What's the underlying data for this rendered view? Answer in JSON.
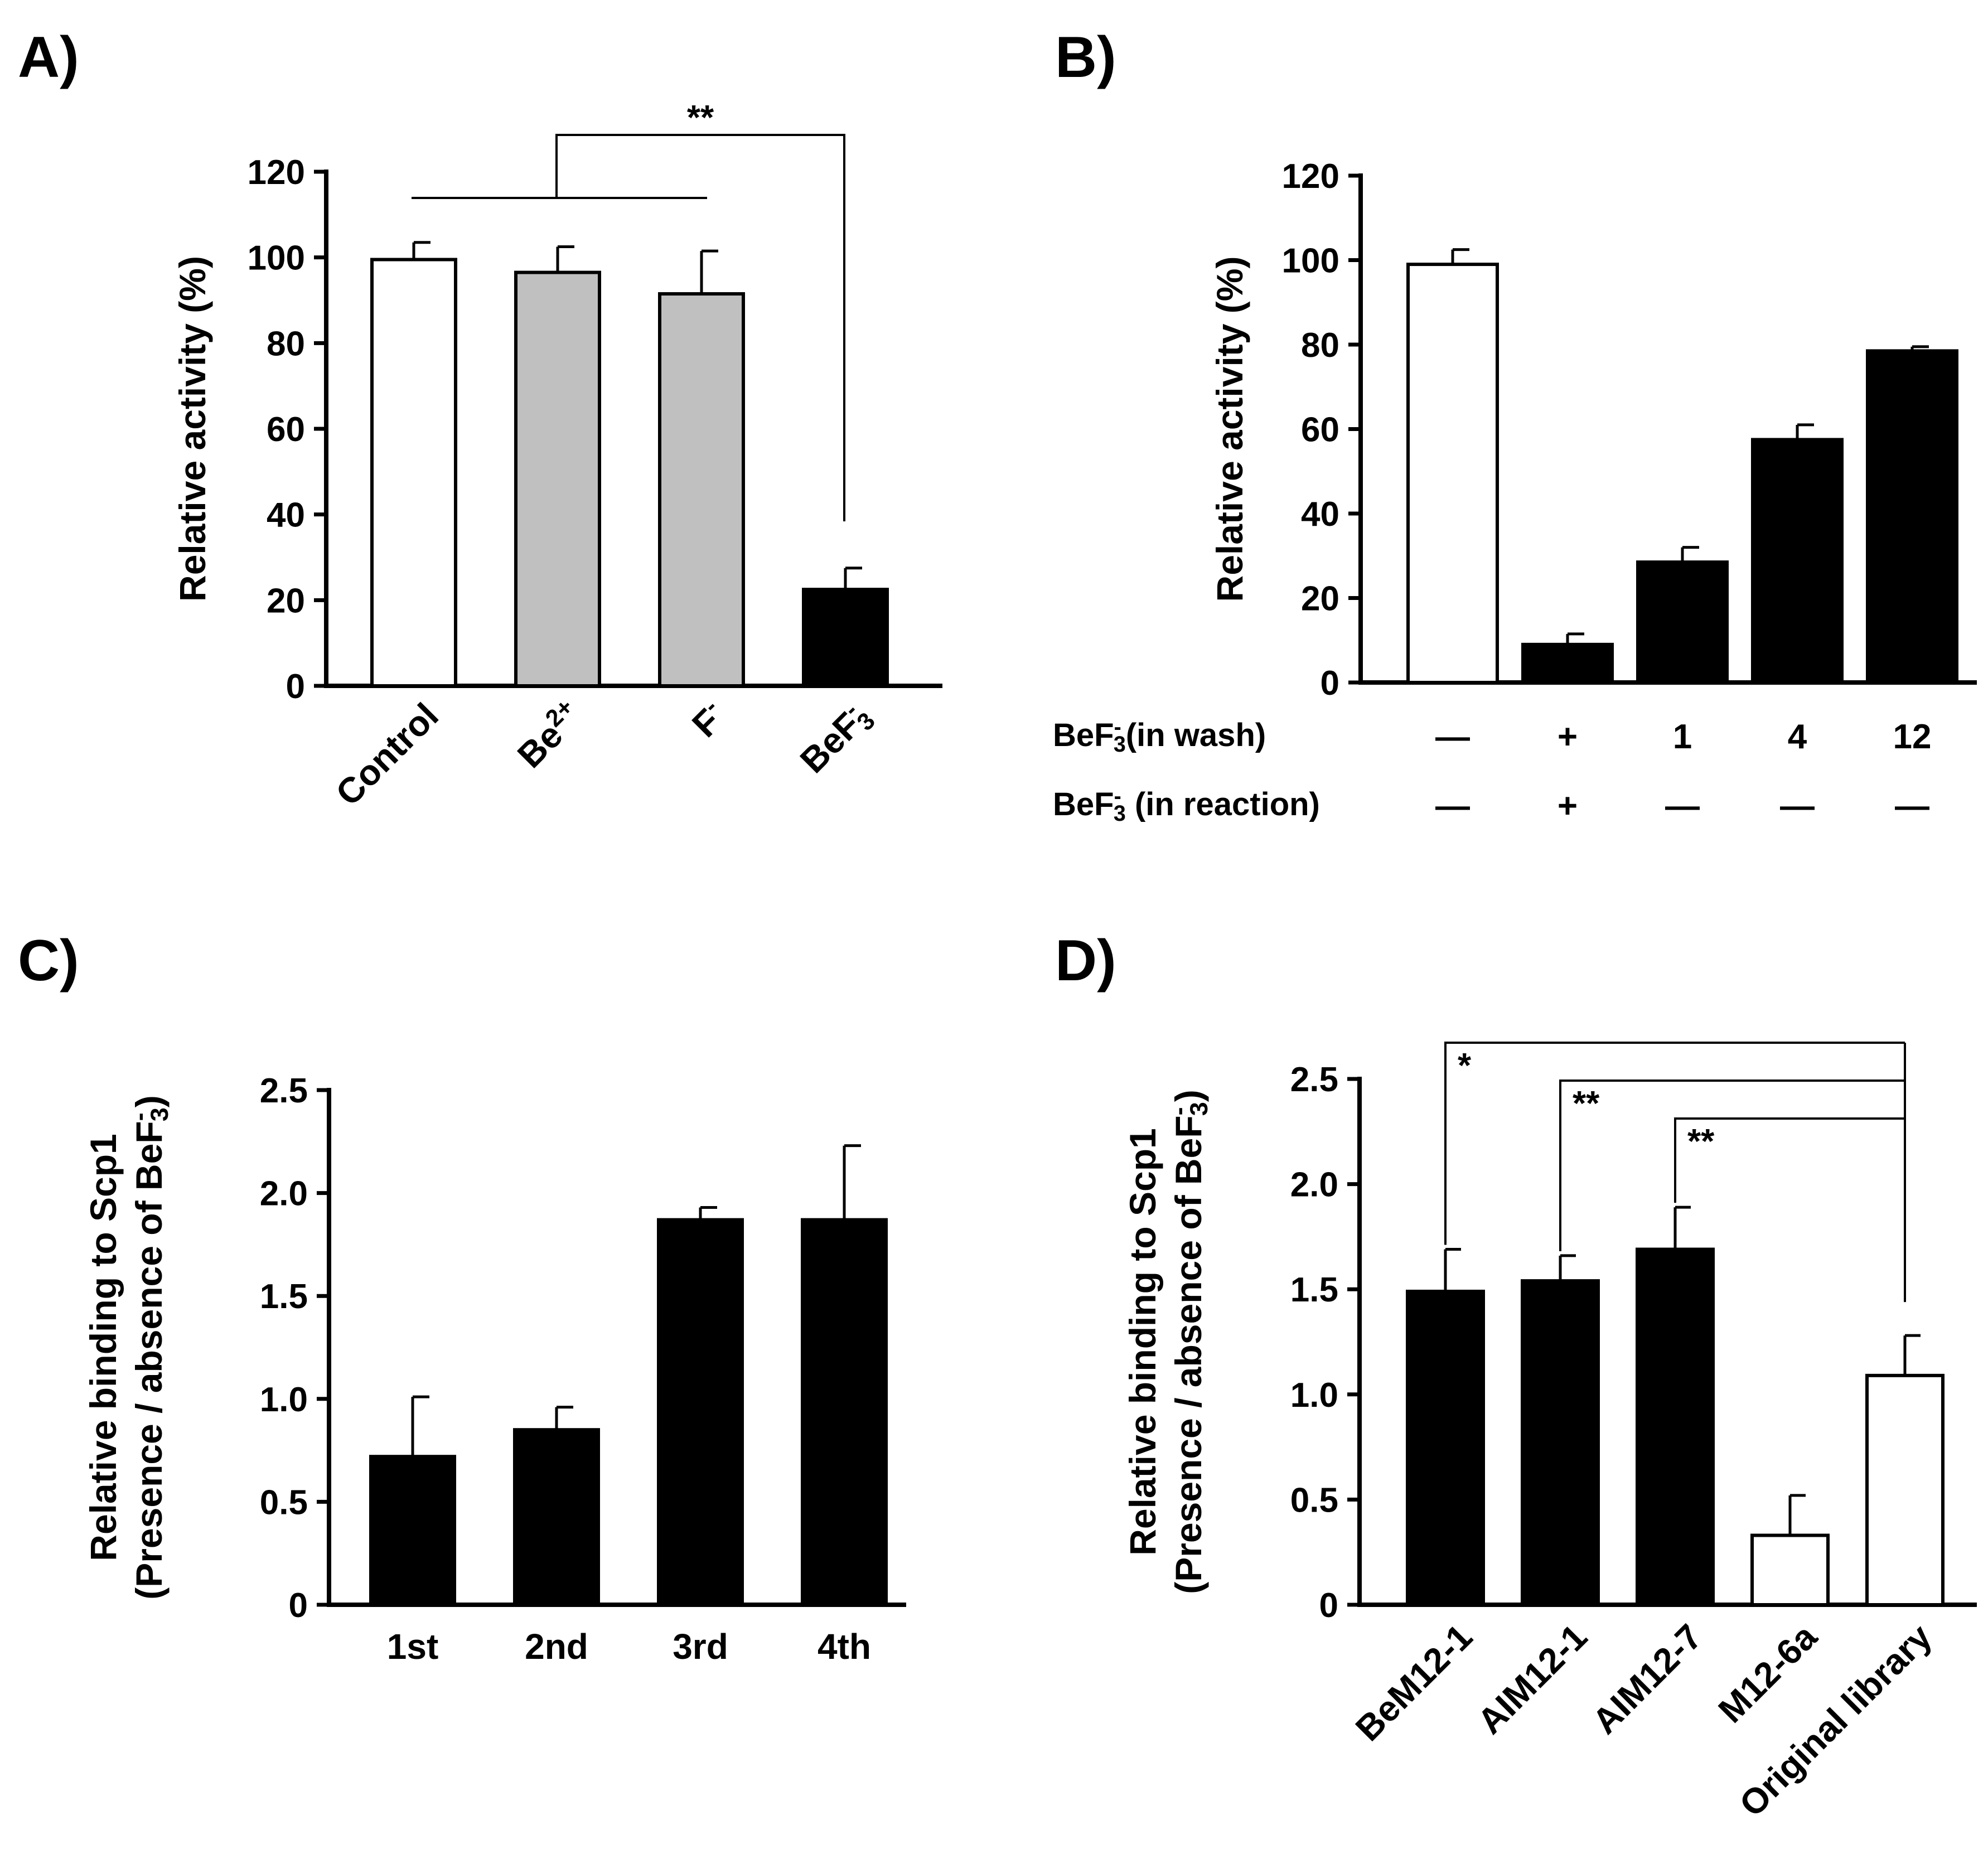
{
  "colors": {
    "white": "#ffffff",
    "gray": "#c0c0c0",
    "black": "#000000"
  },
  "panels": [
    {
      "letter": "A)"
    },
    {
      "letter": "B)"
    },
    {
      "letter": "C)"
    },
    {
      "letter": "D)"
    }
  ],
  "chart_data": [
    {
      "panel": "A)",
      "type": "bar",
      "ylabel": "Relative activity (%)",
      "ylim": [
        0,
        120
      ],
      "yticks": [
        "0",
        "20",
        "40",
        "60",
        "80",
        "100",
        "120"
      ],
      "categories": [
        {
          "base": "Control",
          "sup": "",
          "sub": ""
        },
        {
          "base": "Be",
          "sup": "2+",
          "sub": ""
        },
        {
          "base": "F",
          "sup": "-",
          "sub": ""
        },
        {
          "base": "BeF",
          "sup": "-",
          "sub": "3"
        }
      ],
      "values": [
        99.5,
        96.5,
        91.5,
        22.5
      ],
      "errors": [
        4,
        6,
        10,
        5
      ],
      "colors": [
        "white",
        "gray",
        "gray",
        "black"
      ],
      "annotations": [
        {
          "text": "**",
          "compares": "Control, Be2+, F- vs BeF3-"
        }
      ]
    },
    {
      "panel": "B)",
      "type": "bar",
      "ylabel": "Relative activity (%)",
      "ylim": [
        0,
        120
      ],
      "yticks": [
        "0",
        "20",
        "40",
        "60",
        "80",
        "100",
        "120"
      ],
      "values": [
        99,
        9,
        28.5,
        57.5,
        78.5
      ],
      "errors": [
        3.5,
        2.5,
        3.5,
        3.5,
        1
      ],
      "colors": [
        "white",
        "black",
        "black",
        "black",
        "black"
      ],
      "rows": [
        {
          "prefix": "BeF",
          "sub": "3",
          "sup": "-",
          "suffix": "(in wash)",
          "values": [
            "—",
            "+",
            "1",
            "4",
            "12"
          ]
        },
        {
          "prefix": "BeF",
          "sub": "3",
          "sup": "-",
          "suffix": " (in reaction)",
          "values": [
            "—",
            "+",
            "—",
            "—",
            "—"
          ]
        }
      ]
    },
    {
      "panel": "C)",
      "type": "bar",
      "ylabel_line1": "Relative binding to Scp1",
      "ylabel_line2": {
        "prefix": "(Presence / absence of BeF",
        "sub": "3",
        "sup": "-",
        "suffix": ")"
      },
      "ylim": [
        0,
        2.5
      ],
      "yticks": [
        "0",
        "0.5",
        "1.0",
        "1.5",
        "2.0",
        "2.5"
      ],
      "categories": [
        "1st",
        "2nd",
        "3rd",
        "4th"
      ],
      "values": [
        0.72,
        0.85,
        1.87,
        1.87
      ],
      "errors": [
        0.29,
        0.11,
        0.06,
        0.36
      ],
      "colors": [
        "black",
        "black",
        "black",
        "black"
      ]
    },
    {
      "panel": "D)",
      "type": "bar",
      "ylabel_line1": "Relative binding to Scp1",
      "ylabel_line2": {
        "prefix": "(Presence / absence of BeF",
        "sub": "3",
        "sup": "-",
        "suffix": ")"
      },
      "ylim": [
        0,
        2.5
      ],
      "yticks": [
        "0",
        "0.5",
        "1.0",
        "1.5",
        "2.0",
        "2.5"
      ],
      "categories": [
        "BeM12-1",
        "AIM12-1",
        "AIM12-7",
        "M12-6a",
        "Original  library"
      ],
      "values": [
        1.49,
        1.54,
        1.69,
        0.33,
        1.09
      ],
      "errors": [
        0.2,
        0.12,
        0.2,
        0.19,
        0.19
      ],
      "colors": [
        "black",
        "black",
        "black",
        "white",
        "white"
      ],
      "annotations": [
        {
          "text": "*",
          "compares": "BeM12-1 vs Original library"
        },
        {
          "text": "**",
          "compares": "AIM12-1 vs Original library"
        },
        {
          "text": "**",
          "compares": "AIM12-7 vs Original library"
        }
      ]
    }
  ]
}
